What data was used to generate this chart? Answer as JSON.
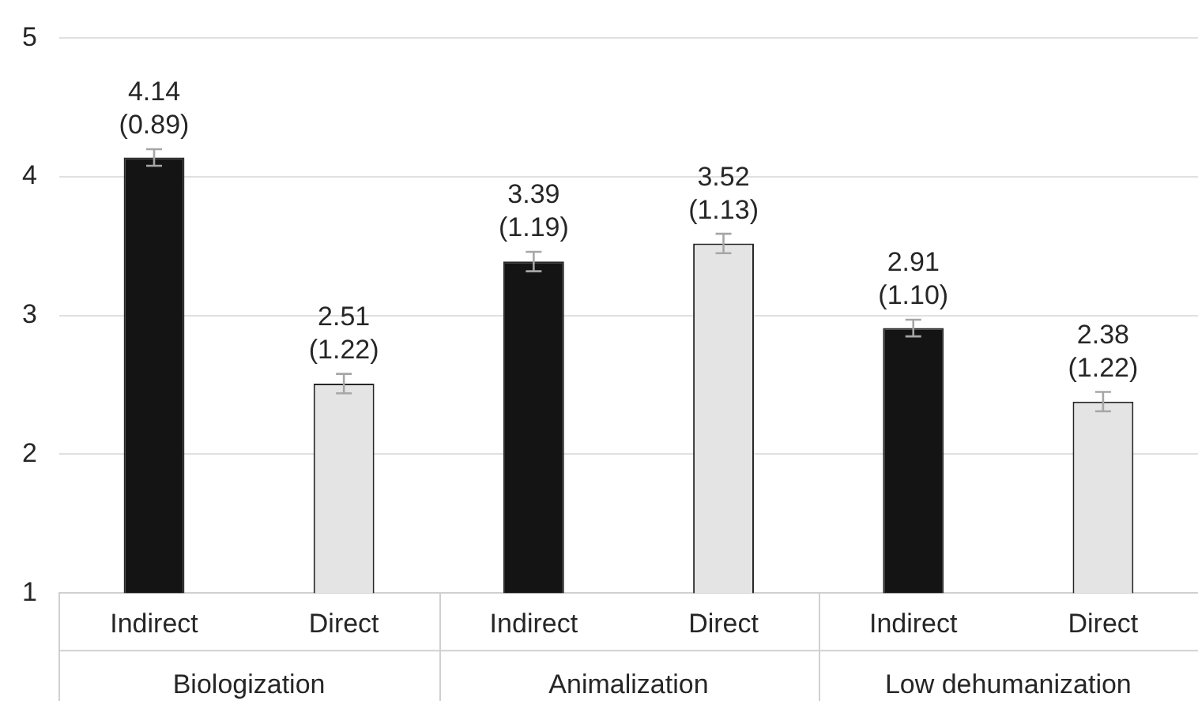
{
  "chart_data": {
    "type": "bar",
    "categories": [
      "Indirect",
      "Direct",
      "Indirect",
      "Direct",
      "Indirect",
      "Direct"
    ],
    "values": [
      4.14,
      2.51,
      3.39,
      3.52,
      2.91,
      2.38
    ],
    "colors": [
      "#141414",
      "#e4e4e4",
      "#141414",
      "#e4e4e4",
      "#141414",
      "#e4e4e4"
    ],
    "errors": [
      0.06,
      0.07,
      0.07,
      0.07,
      0.06,
      0.07
    ],
    "value_labels": [
      "4.14 (0.89)",
      "2.51 (1.22)",
      "3.39 (1.19)",
      "3.52 (1.13)",
      "2.91 (1.10)",
      "2.38 (1.22)"
    ],
    "annotations": [
      "Biologization",
      "Animalization",
      "Low dehumanization"
    ],
    "ylim": [
      1,
      5
    ],
    "yticks": [
      1,
      2,
      3,
      4,
      5
    ],
    "grid": "y",
    "legend": false
  }
}
